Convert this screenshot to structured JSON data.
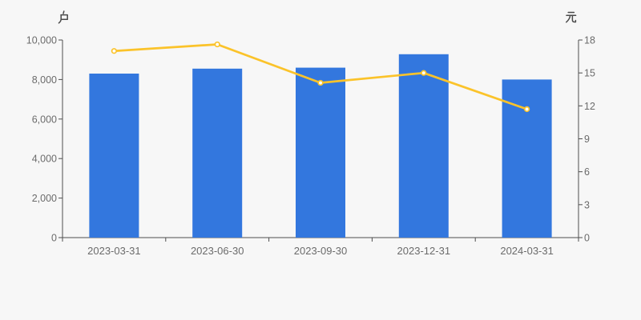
{
  "page": {
    "background": "#f7f7f7"
  },
  "chart_data": {
    "type": "bar+line",
    "categories": [
      "2023-03-31",
      "2023-06-30",
      "2023-09-30",
      "2023-12-31",
      "2024-03-31"
    ],
    "series": [
      {
        "id": "bar_series",
        "type": "bar",
        "axis": "left",
        "values": [
          8300,
          8550,
          8600,
          9280,
          8000
        ],
        "color": "#3377de"
      },
      {
        "id": "line_series",
        "type": "line",
        "axis": "right",
        "values": [
          17,
          17.6,
          14.1,
          15,
          11.7
        ],
        "color": "#fbc32a",
        "marker_fill": "#ffffff"
      }
    ],
    "left_axis": {
      "title": "户",
      "min": 0,
      "max": 10000,
      "tick_step": 2000,
      "tick_labels": [
        "0",
        "2,000",
        "4,000",
        "6,000",
        "8,000",
        "10,000"
      ]
    },
    "right_axis": {
      "title": "元",
      "min": 0,
      "max": 18,
      "tick_step": 3,
      "tick_labels": [
        "0",
        "3",
        "6",
        "9",
        "12",
        "15",
        "18"
      ]
    },
    "grid": false,
    "legend": false,
    "axis_line_color": "#4f4f4f",
    "tick_label_color": "#6b6b6b",
    "axis_title_color": "#4a4a4a"
  }
}
